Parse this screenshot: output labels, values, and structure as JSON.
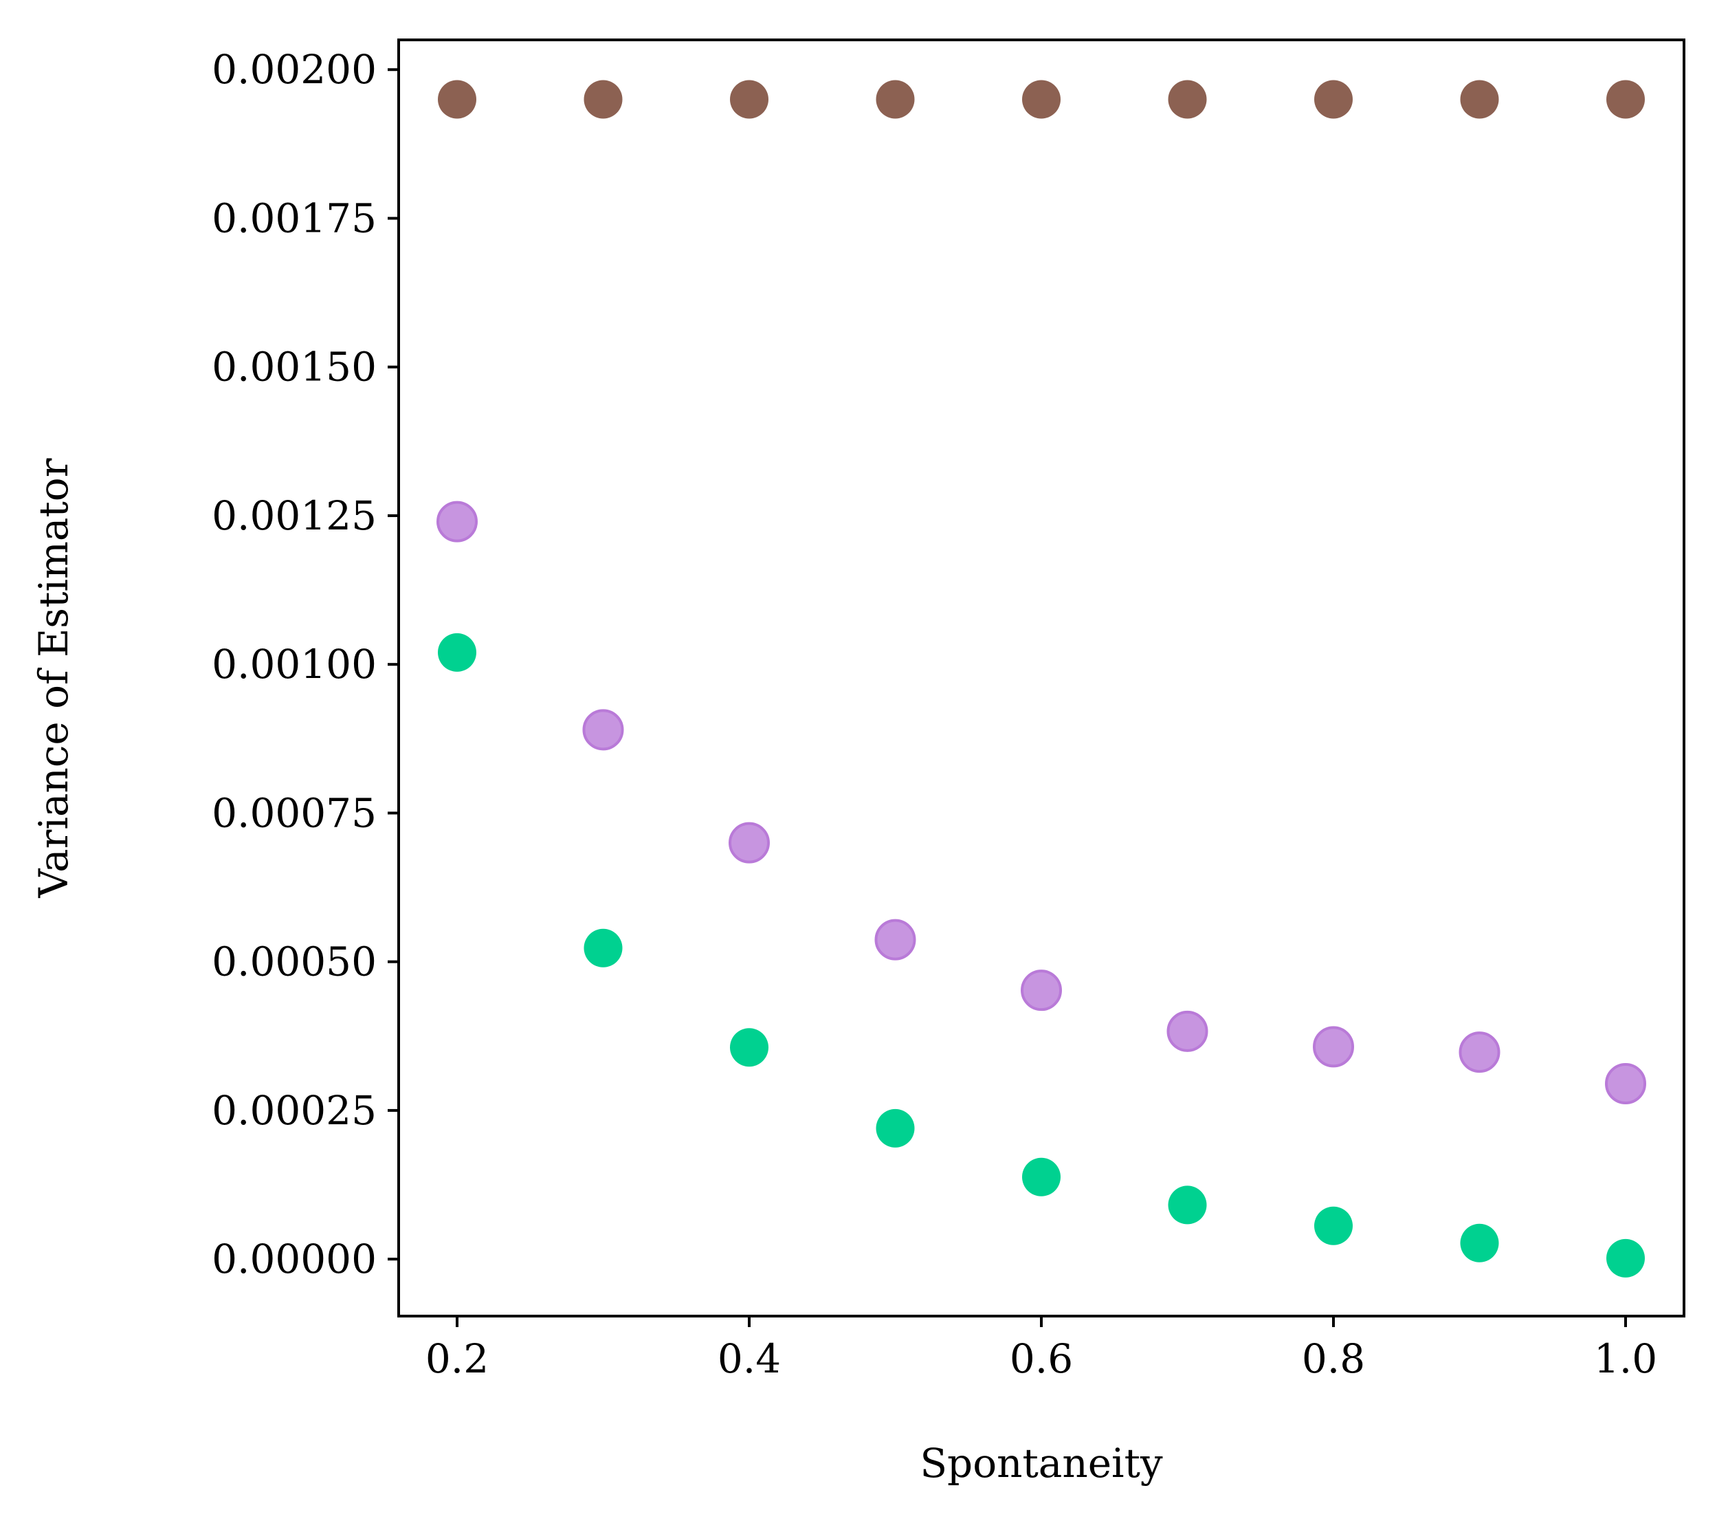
{
  "chart_data": {
    "type": "scatter",
    "title": "",
    "xlabel": "Spontaneity",
    "ylabel": "Variance of Estimator",
    "xlim": [
      0.16,
      1.04
    ],
    "ylim": [
      -9.58e-05,
      0.00205
    ],
    "x_ticks": [
      0.2,
      0.4,
      0.6,
      0.8,
      1.0
    ],
    "x_tick_labels": [
      "0.2",
      "0.4",
      "0.6",
      "0.8",
      "1.0"
    ],
    "y_ticks": [
      0.0,
      0.00025,
      0.0005,
      0.00075,
      0.001,
      0.00125,
      0.0015,
      0.00175,
      0.002
    ],
    "y_tick_labels": [
      "0.00000",
      "0.00025",
      "0.00050",
      "0.00075",
      "0.00100",
      "0.00125",
      "0.00150",
      "0.00175",
      "0.00200"
    ],
    "grid": false,
    "x": [
      0.2,
      0.3,
      0.4,
      0.5,
      0.6,
      0.7,
      0.8,
      0.9,
      1.0
    ],
    "series": [
      {
        "color": "#8c6152",
        "opacity": 1.0,
        "values": [
          0.00195,
          0.00195,
          0.00195,
          0.00195,
          0.00195,
          0.00195,
          0.00195,
          0.00195,
          0.00195
        ]
      },
      {
        "color": "#b97ad8",
        "opacity": 0.8,
        "values": [
          0.00124,
          0.00089,
          0.0007,
          0.000537,
          0.000452,
          0.000383,
          0.000357,
          0.000348,
          0.000295
        ]
      },
      {
        "color": "#00d190",
        "opacity": 1.0,
        "values": [
          0.00102,
          0.000523,
          0.000356,
          0.00022,
          0.000138,
          9.1e-05,
          5.6e-05,
          2.7e-05,
          1.5e-06
        ]
      }
    ]
  }
}
